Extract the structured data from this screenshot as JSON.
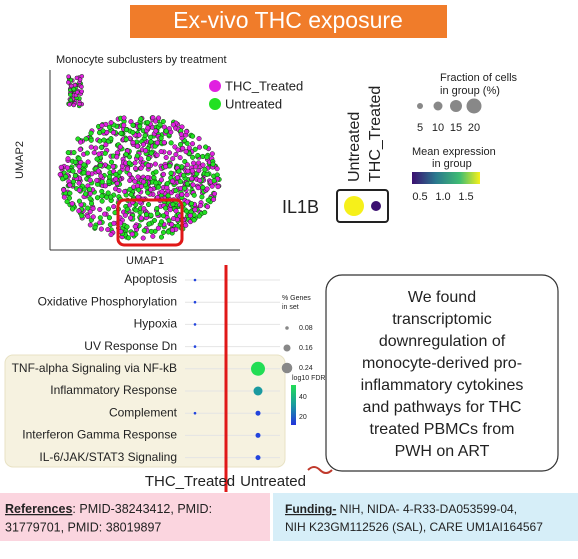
{
  "title": "Ex-vivo THC exposure",
  "umap": {
    "title": "Monocyte subclusters by treatment",
    "x_label": "UMAP1",
    "y_label": "UMAP2",
    "legend": [
      {
        "name": "THC_Treated",
        "color": "#e020e0"
      },
      {
        "name": "Untreated",
        "color": "#22e022"
      }
    ]
  },
  "il1b_plot": {
    "gene": "IL1B",
    "groups": [
      "THC_Treated",
      "Untreated"
    ],
    "fraction_legend": {
      "title": [
        "Fraction of cells",
        "in group (%)"
      ],
      "ticks": [
        5,
        10,
        15,
        20
      ]
    },
    "expression_legend": {
      "title": [
        "Mean expression",
        "in group"
      ],
      "ticks": [
        0.5,
        {
          "value": 1,
          "label": "1.0"
        },
        1.5
      ]
    }
  },
  "pathway_plot": {
    "pathways": [
      "Apoptosis",
      "Oxidative Phosphorylation",
      "Hypoxia",
      "UV Response Dn",
      "TNF-alpha Signaling via NF-kB",
      "Inflammatory Response",
      "Complement",
      "Interferon Gamma Response",
      "IL-6/JAK/STAT3 Signaling"
    ],
    "groups": [
      "THC_Treated",
      "Untreated"
    ],
    "size_legend": {
      "title": [
        "% Genes",
        "in set"
      ],
      "ticks": [
        0.08,
        0.16,
        0.24
      ]
    },
    "color_legend": {
      "title": "log10 FDR",
      "ticks": [
        40,
        20
      ]
    }
  },
  "finding": [
    "We found",
    "transcriptomic",
    "downregulation of",
    "monocyte-derived pro-",
    "inflammatory cytokines",
    "and pathways for THC",
    "treated PBMCs from",
    "PWH on ART"
  ],
  "references": {
    "label": "References",
    "text": ": PMID-38243412, PMID:",
    "text2": "31779701, PMID: 38019897"
  },
  "funding": {
    "label": "Funding-",
    "text": " NIH, NIDA- 4-R33-DA053599-04,",
    "text2": "NIH K23GM112526 (SAL), CARE UM1AI164567"
  }
}
